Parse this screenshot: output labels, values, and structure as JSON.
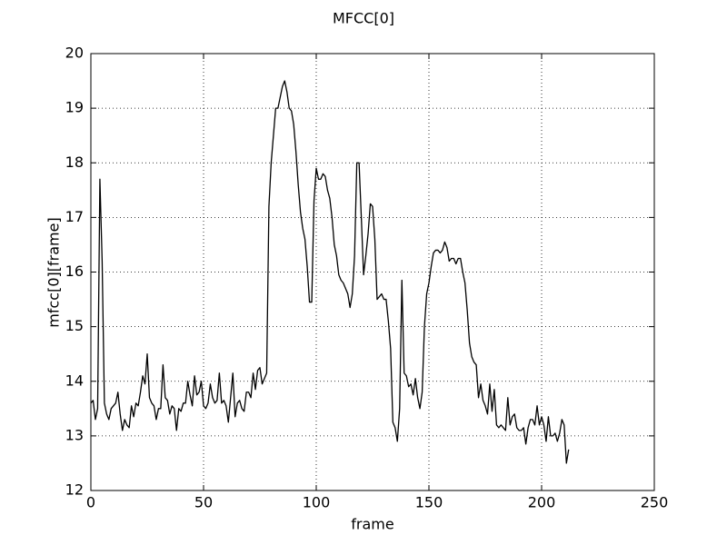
{
  "chart_data": {
    "type": "line",
    "title": "MFCC[0]",
    "xlabel": "frame",
    "ylabel": "mfcc[0][frame]",
    "xlim": [
      0,
      250
    ],
    "xticks": [
      0,
      50,
      100,
      150,
      200,
      250
    ],
    "ylim": [
      12,
      20
    ],
    "yticks": [
      12,
      13,
      14,
      15,
      16,
      17,
      18,
      19,
      20
    ],
    "grid": true,
    "x": [
      0,
      1,
      2,
      3,
      4,
      5,
      6,
      7,
      8,
      9,
      10,
      11,
      12,
      13,
      14,
      15,
      16,
      17,
      18,
      19,
      20,
      21,
      22,
      23,
      24,
      25,
      26,
      27,
      28,
      29,
      30,
      31,
      32,
      33,
      34,
      35,
      36,
      37,
      38,
      39,
      40,
      41,
      42,
      43,
      44,
      45,
      46,
      47,
      48,
      49,
      50,
      51,
      52,
      53,
      54,
      55,
      56,
      57,
      58,
      59,
      60,
      61,
      62,
      63,
      64,
      65,
      66,
      67,
      68,
      69,
      70,
      71,
      72,
      73,
      74,
      75,
      76,
      77,
      78,
      79,
      80,
      81,
      82,
      83,
      84,
      85,
      86,
      87,
      88,
      89,
      90,
      91,
      92,
      93,
      94,
      95,
      96,
      97,
      98,
      99,
      100,
      101,
      102,
      103,
      104,
      105,
      106,
      107,
      108,
      109,
      110,
      111,
      112,
      113,
      114,
      115,
      116,
      117,
      118,
      119,
      120,
      121,
      122,
      123,
      124,
      125,
      126,
      127,
      128,
      129,
      130,
      131,
      132,
      133,
      134,
      135,
      136,
      137,
      138,
      139,
      140,
      141,
      142,
      143,
      144,
      145,
      146,
      147,
      148,
      149,
      150,
      151,
      152,
      153,
      154,
      155,
      156,
      157,
      158,
      159,
      160,
      161,
      162,
      163,
      164,
      165,
      166,
      167,
      168,
      169,
      170,
      171,
      172,
      173,
      174,
      175,
      176,
      177,
      178,
      179,
      180,
      181,
      182,
      183,
      184,
      185,
      186,
      187,
      188,
      189,
      190,
      191,
      192,
      193,
      194,
      195,
      196,
      197,
      198,
      199,
      200,
      201,
      202,
      203,
      204,
      205,
      206,
      207,
      208,
      209,
      210,
      211,
      212
    ],
    "series": [
      {
        "color": "#000000",
        "values": [
          13.6,
          13.65,
          13.3,
          13.5,
          17.7,
          16.2,
          13.6,
          13.4,
          13.3,
          13.5,
          13.55,
          13.6,
          13.8,
          13.4,
          13.1,
          13.3,
          13.2,
          13.15,
          13.55,
          13.35,
          13.6,
          13.55,
          13.8,
          14.1,
          13.95,
          14.5,
          13.7,
          13.6,
          13.55,
          13.3,
          13.5,
          13.5,
          14.3,
          13.7,
          13.65,
          13.4,
          13.55,
          13.5,
          13.1,
          13.5,
          13.45,
          13.6,
          13.6,
          14.0,
          13.75,
          13.55,
          14.1,
          13.75,
          13.8,
          14.0,
          13.55,
          13.5,
          13.6,
          13.95,
          13.7,
          13.6,
          13.65,
          14.15,
          13.6,
          13.65,
          13.55,
          13.25,
          13.7,
          14.15,
          13.35,
          13.6,
          13.65,
          13.5,
          13.45,
          13.8,
          13.8,
          13.7,
          14.15,
          13.85,
          14.2,
          14.25,
          13.95,
          14.05,
          14.15,
          17.2,
          18.0,
          18.5,
          19.0,
          19.0,
          19.2,
          19.4,
          19.5,
          19.3,
          19.0,
          18.95,
          18.7,
          18.2,
          17.6,
          17.1,
          16.8,
          16.6,
          16.1,
          15.45,
          15.45,
          17.3,
          17.9,
          17.7,
          17.7,
          17.8,
          17.75,
          17.5,
          17.35,
          17.0,
          16.5,
          16.3,
          15.95,
          15.85,
          15.8,
          15.7,
          15.6,
          15.35,
          15.6,
          16.3,
          18.0,
          18.0,
          17.0,
          15.95,
          16.3,
          16.7,
          17.25,
          17.2,
          16.6,
          15.5,
          15.55,
          15.6,
          15.5,
          15.5,
          15.1,
          14.6,
          13.25,
          13.15,
          12.9,
          13.5,
          15.85,
          14.15,
          14.1,
          13.9,
          13.95,
          13.75,
          14.05,
          13.7,
          13.5,
          13.8,
          15.0,
          15.6,
          15.8,
          16.1,
          16.35,
          16.4,
          16.4,
          16.35,
          16.4,
          16.55,
          16.45,
          16.2,
          16.25,
          16.25,
          16.15,
          16.25,
          16.25,
          16.0,
          15.8,
          15.3,
          14.7,
          14.45,
          14.35,
          14.3,
          13.7,
          13.95,
          13.65,
          13.55,
          13.4,
          13.95,
          13.45,
          13.85,
          13.2,
          13.15,
          13.2,
          13.15,
          13.1,
          13.7,
          13.2,
          13.35,
          13.4,
          13.15,
          13.1,
          13.1,
          13.15,
          12.85,
          13.15,
          13.3,
          13.3,
          13.2,
          13.55,
          13.2,
          13.35,
          13.2,
          12.9,
          13.35,
          13.0,
          13.0,
          13.05,
          12.9,
          13.05,
          13.3,
          13.2,
          12.5,
          12.75
        ]
      }
    ]
  }
}
